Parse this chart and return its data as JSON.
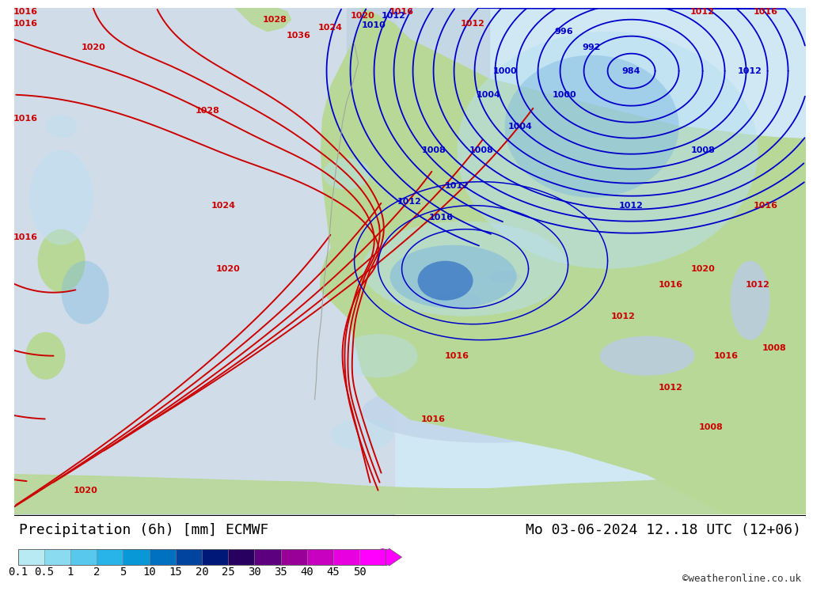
{
  "title_left": "Precipitation (6h) [mm] ECMWF",
  "title_right": "Mo 03-06-2024 12..18 UTC (12+06)",
  "credit": "©weatheronline.co.uk",
  "colorbar_values": [
    0.1,
    0.5,
    1,
    2,
    5,
    10,
    15,
    20,
    25,
    30,
    35,
    40,
    45,
    50
  ],
  "colorbar_colors": [
    "#b8eaf4",
    "#8adaf0",
    "#58c8ec",
    "#28b4e8",
    "#0898d8",
    "#0070c0",
    "#0044a0",
    "#001878",
    "#280060",
    "#5c0080",
    "#980098",
    "#c800c0",
    "#e800e0",
    "#ff00ff"
  ],
  "ocean_color": "#d8eef8",
  "land_color": "#c8e8b0",
  "bg_color": "#ffffff",
  "bottom_bg": "#ffffff",
  "title_fontsize": 13,
  "credit_fontsize": 9,
  "colorbar_label_fontsize": 10,
  "fig_width": 10.0,
  "fig_height": 7.33,
  "dpi": 100,
  "map_ocean_color": "#d0e8f4",
  "map_land_color": "#b8d898",
  "map_gray_color": "#b8b8b8",
  "prec_light": "#b8dff0",
  "prec_mid": "#7ab8e0",
  "prec_dark": "#2060c0",
  "red_isobar_color": "#cc0000",
  "blue_isobar_color": "#0000cc"
}
